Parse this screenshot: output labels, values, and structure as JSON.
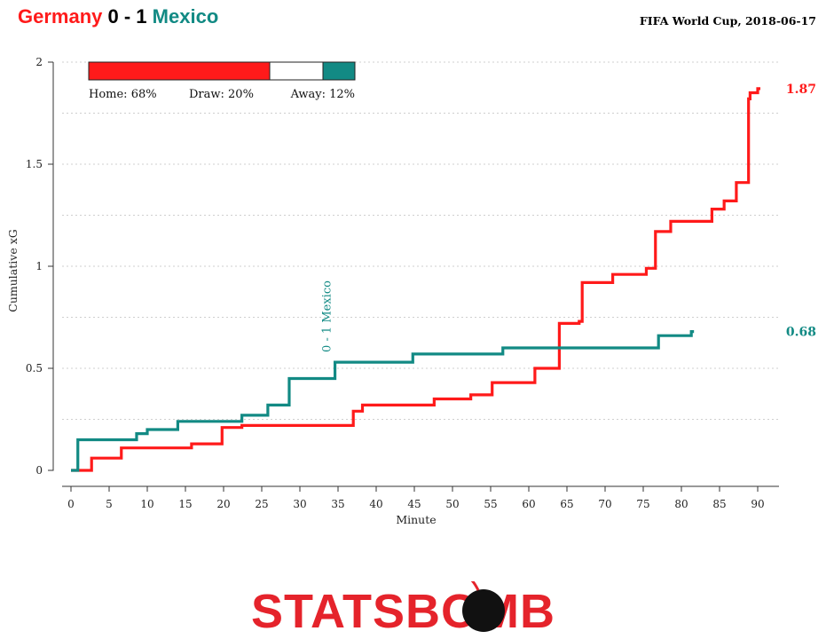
{
  "header": {
    "home_team": "Germany",
    "score": "0 - 1",
    "away_team": "Mexico",
    "competition_date": "FIFA World Cup, 2018-06-17"
  },
  "colors": {
    "home": "#ff1a1a",
    "away": "#128a84",
    "draw": "#ffffff"
  },
  "probabilities": {
    "home": 0.68,
    "draw": 0.2,
    "away": 0.12,
    "home_label": "Home: 68%",
    "draw_label": "Draw: 20%",
    "away_label": "Away: 12%"
  },
  "chart_data": {
    "type": "line",
    "xlabel": "Minute",
    "ylabel": "Cumulative xG",
    "xlim": [
      0,
      90
    ],
    "ylim": [
      0,
      2
    ],
    "x_ticks": [
      0,
      5,
      10,
      15,
      20,
      25,
      30,
      35,
      40,
      45,
      50,
      55,
      60,
      65,
      70,
      75,
      80,
      85,
      90
    ],
    "y_ticks": [
      0,
      0.5,
      1,
      1.5,
      2
    ],
    "y_tick_labels": [
      "0",
      "0.5",
      "1",
      "1.5",
      "2"
    ],
    "grid": "horizontal dotted",
    "series": [
      {
        "name": "Germany",
        "color": "#ff1a1a",
        "step": true,
        "x": [
          0,
          2.7,
          6.6,
          15.8,
          19.8,
          22.4,
          37,
          38.2,
          47.6,
          52.4,
          55.2,
          60.8,
          64,
          66.6,
          67,
          71,
          75.4,
          76.6,
          78.6,
          84,
          85.6,
          87.2,
          88.8,
          89,
          90
        ],
        "y": [
          0,
          0.06,
          0.11,
          0.13,
          0.21,
          0.22,
          0.29,
          0.32,
          0.35,
          0.37,
          0.43,
          0.5,
          0.72,
          0.73,
          0.92,
          0.96,
          0.99,
          1.17,
          1.22,
          1.28,
          1.32,
          1.41,
          1.82,
          1.85,
          1.87
        ],
        "end_label": "1.87"
      },
      {
        "name": "Mexico",
        "color": "#128a84",
        "step": true,
        "x": [
          0,
          0.9,
          8.6,
          10,
          14,
          22.4,
          25.8,
          28.6,
          34.6,
          44.8,
          56.6,
          77,
          81.3
        ],
        "y": [
          0,
          0.15,
          0.18,
          0.2,
          0.24,
          0.27,
          0.32,
          0.45,
          0.53,
          0.57,
          0.6,
          0.66,
          0.68
        ],
        "end_label": "0.68"
      }
    ],
    "annotations": [
      {
        "text": "0 - 1 Mexico",
        "x": 34.6,
        "color": "#128a84"
      }
    ]
  },
  "logo": {
    "text": "STATSBOMB"
  }
}
